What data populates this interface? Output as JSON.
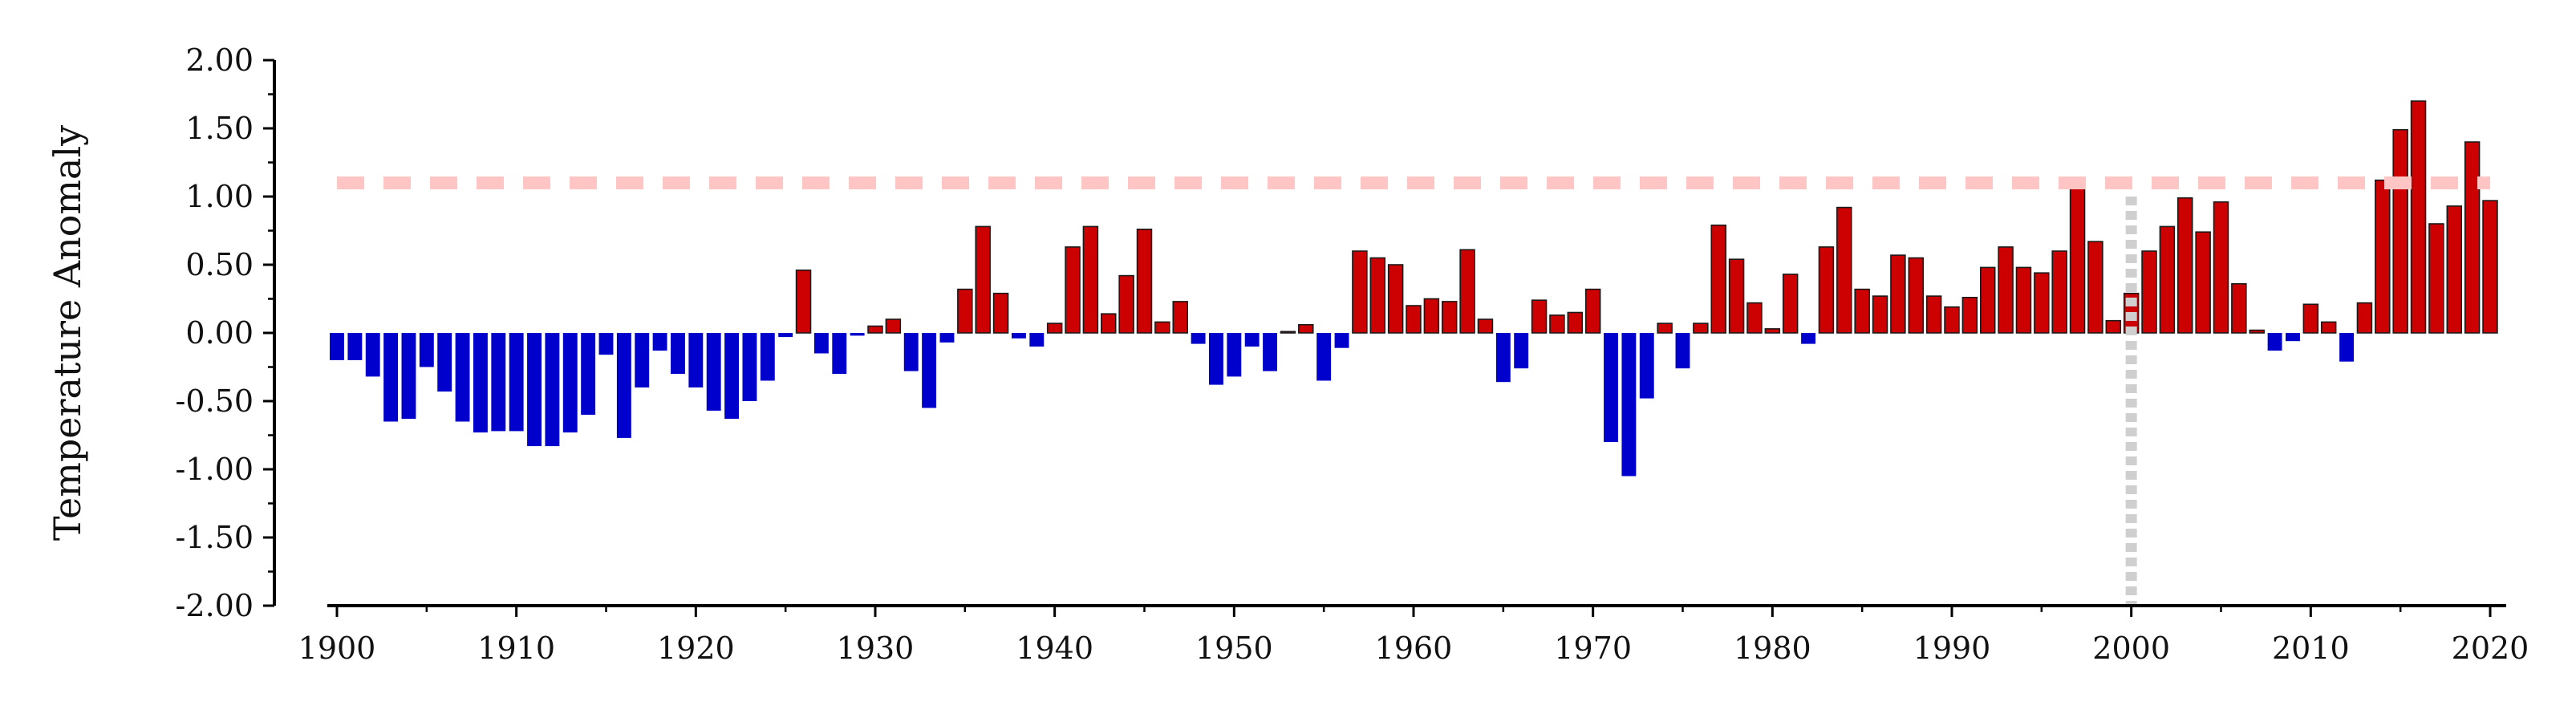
{
  "chart_data": {
    "type": "bar",
    "title": "",
    "xlabel": "",
    "ylabel": "Temperature Anomaly",
    "ylim": [
      -2.0,
      2.0
    ],
    "xlim": [
      1900,
      2020
    ],
    "yticks": [
      "-2.00",
      "-1.50",
      "-1.00",
      "-0.50",
      "0.00",
      "0.50",
      "1.00",
      "1.50",
      "2.00"
    ],
    "ytick_values": [
      -2.0,
      -1.5,
      -1.0,
      -0.5,
      0.0,
      0.5,
      1.0,
      1.5,
      2.0
    ],
    "xticks": [
      "1900",
      "1910",
      "1920",
      "1930",
      "1940",
      "1950",
      "1960",
      "1970",
      "1980",
      "1990",
      "2000",
      "2010",
      "2020"
    ],
    "xtick_values": [
      1900,
      1910,
      1920,
      1930,
      1940,
      1950,
      1960,
      1970,
      1980,
      1990,
      2000,
      2010,
      2020
    ],
    "grid": false,
    "legend": "none",
    "colors": {
      "positive": "#cc0000",
      "negative": "#0000cc",
      "positive_edge": "#1a1a1a",
      "reference_line": "#ffc4c4",
      "vertical_marker": "#cfcfcf",
      "axis": "#000000"
    },
    "reference_hline": {
      "y": 1.1,
      "style": "dashed"
    },
    "vertical_marker": {
      "x": 2000,
      "y_from": -2.0,
      "y_to": 1.0,
      "style": "dotted"
    },
    "years": [
      1900,
      1901,
      1902,
      1903,
      1904,
      1905,
      1906,
      1907,
      1908,
      1909,
      1910,
      1911,
      1912,
      1913,
      1914,
      1915,
      1916,
      1917,
      1918,
      1919,
      1920,
      1921,
      1922,
      1923,
      1924,
      1925,
      1926,
      1927,
      1928,
      1929,
      1930,
      1931,
      1932,
      1933,
      1934,
      1935,
      1936,
      1937,
      1938,
      1939,
      1940,
      1941,
      1942,
      1943,
      1944,
      1945,
      1946,
      1947,
      1948,
      1949,
      1950,
      1951,
      1952,
      1953,
      1954,
      1955,
      1956,
      1957,
      1958,
      1959,
      1960,
      1961,
      1962,
      1963,
      1964,
      1965,
      1966,
      1967,
      1968,
      1969,
      1970,
      1971,
      1972,
      1973,
      1974,
      1975,
      1976,
      1977,
      1978,
      1979,
      1980,
      1981,
      1982,
      1983,
      1984,
      1985,
      1986,
      1987,
      1988,
      1989,
      1990,
      1991,
      1992,
      1993,
      1994,
      1995,
      1996,
      1997,
      1998,
      1999,
      2000,
      2001,
      2002,
      2003,
      2004,
      2005,
      2006,
      2007,
      2008,
      2009,
      2010,
      2011,
      2012,
      2013,
      2014,
      2015,
      2016,
      2017,
      2018,
      2019,
      2020
    ],
    "values": [
      -0.2,
      -0.2,
      -0.32,
      -0.65,
      -0.63,
      -0.25,
      -0.43,
      -0.65,
      -0.73,
      -0.72,
      -0.72,
      -0.83,
      -0.83,
      -0.73,
      -0.6,
      -0.16,
      -0.77,
      -0.4,
      -0.13,
      -0.3,
      -0.4,
      -0.57,
      -0.63,
      -0.5,
      -0.35,
      -0.03,
      0.46,
      -0.15,
      -0.3,
      -0.02,
      0.05,
      0.1,
      -0.28,
      -0.55,
      -0.07,
      0.32,
      0.78,
      0.29,
      -0.04,
      -0.1,
      0.07,
      0.63,
      0.78,
      0.14,
      0.42,
      0.76,
      0.08,
      0.23,
      -0.08,
      -0.38,
      -0.32,
      -0.1,
      -0.28,
      0.01,
      0.06,
      -0.35,
      -0.11,
      0.6,
      0.55,
      0.5,
      0.2,
      0.25,
      0.23,
      0.61,
      0.1,
      -0.36,
      -0.26,
      0.24,
      0.13,
      0.15,
      0.32,
      -0.8,
      -1.05,
      -0.48,
      0.07,
      -0.26,
      0.07,
      0.79,
      0.54,
      0.22,
      0.03,
      0.43,
      -0.08,
      0.63,
      0.92,
      0.32,
      0.27,
      0.57,
      0.55,
      0.27,
      0.19,
      0.26,
      0.48,
      0.63,
      0.48,
      0.44,
      0.6,
      1.1,
      0.67,
      0.09,
      0.29,
      0.6,
      0.78,
      0.99,
      0.74,
      0.96,
      0.36,
      0.02,
      -0.13,
      -0.06,
      0.21,
      0.08,
      -0.21,
      0.22,
      1.12,
      1.49,
      1.7,
      0.8,
      0.93,
      1.4,
      0.97
    ]
  }
}
